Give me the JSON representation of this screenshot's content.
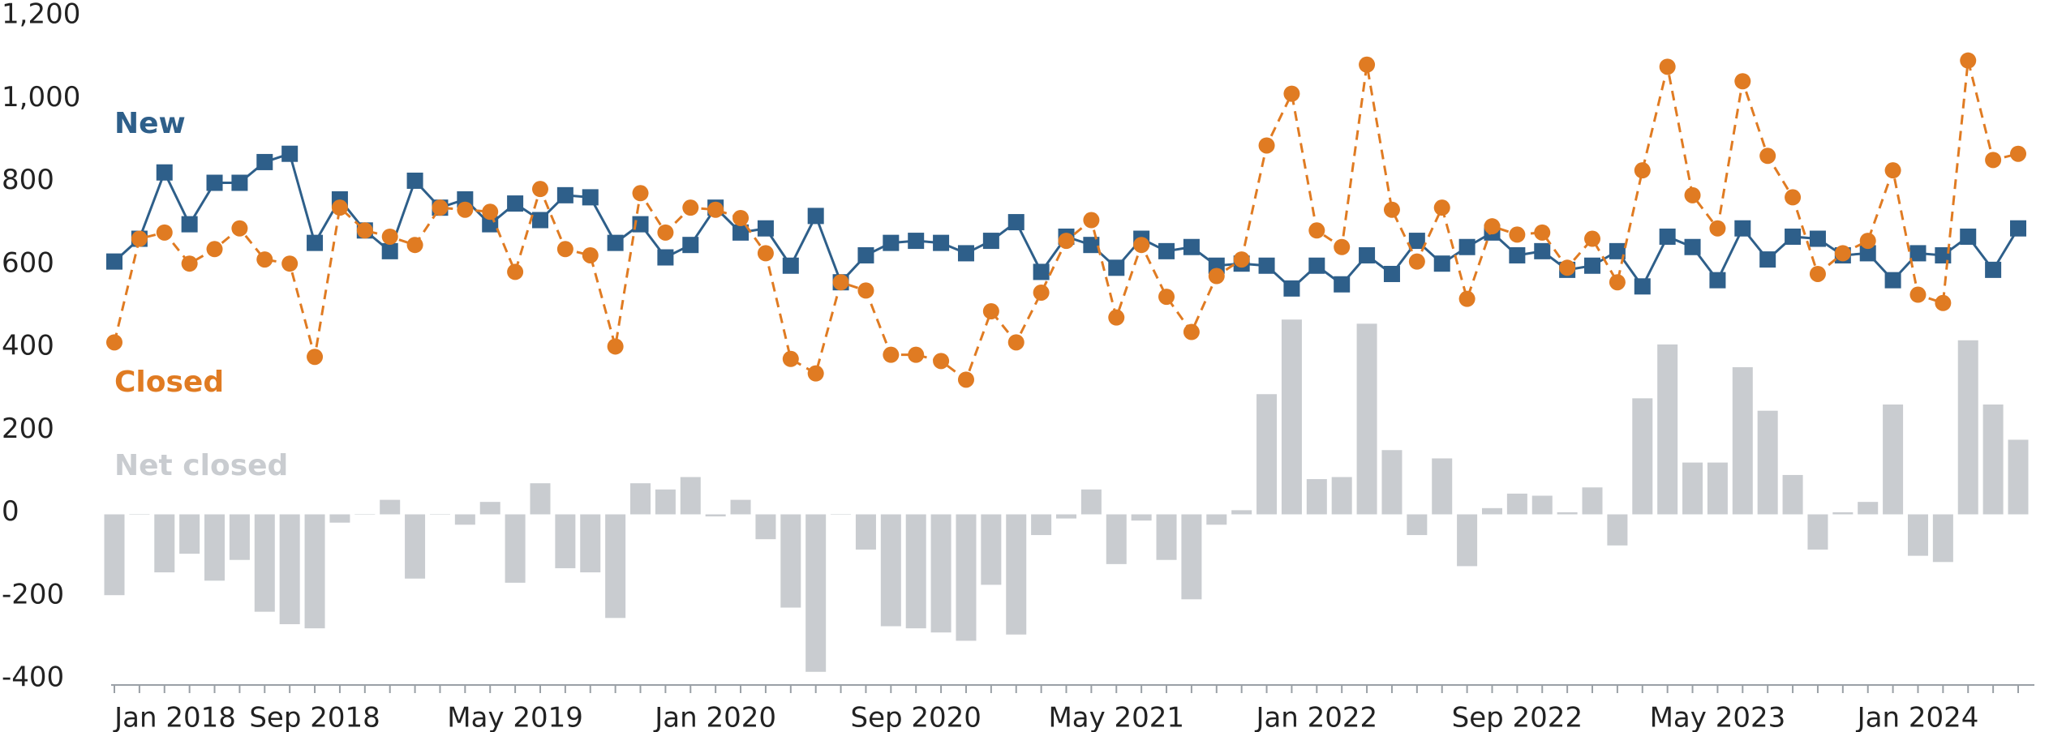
{
  "chart_data": {
    "type": "line",
    "x": [
      "2018-01",
      "2018-02",
      "2018-03",
      "2018-04",
      "2018-05",
      "2018-06",
      "2018-07",
      "2018-08",
      "2018-09",
      "2018-10",
      "2018-11",
      "2018-12",
      "2019-01",
      "2019-02",
      "2019-03",
      "2019-04",
      "2019-05",
      "2019-06",
      "2019-07",
      "2019-08",
      "2019-09",
      "2019-10",
      "2019-11",
      "2019-12",
      "2020-01",
      "2020-02",
      "2020-03",
      "2020-04",
      "2020-05",
      "2020-06",
      "2020-07",
      "2020-08",
      "2020-09",
      "2020-10",
      "2020-11",
      "2020-12",
      "2021-01",
      "2021-02",
      "2021-03",
      "2021-04",
      "2021-05",
      "2021-06",
      "2021-07",
      "2021-08",
      "2021-09",
      "2021-10",
      "2021-11",
      "2021-12",
      "2022-01",
      "2022-02",
      "2022-03",
      "2022-04",
      "2022-05",
      "2022-06",
      "2022-07",
      "2022-08",
      "2022-09",
      "2022-10",
      "2022-11",
      "2022-12",
      "2023-01",
      "2023-02",
      "2023-03",
      "2023-04",
      "2023-05",
      "2023-06",
      "2023-07",
      "2023-08",
      "2023-09",
      "2023-10",
      "2023-11",
      "2023-12",
      "2024-01",
      "2024-02",
      "2024-03",
      "2024-04",
      "2024-05"
    ],
    "series": [
      {
        "name": "New",
        "color": "#2e5f8a",
        "marker": "square",
        "dashed": false,
        "values": [
          610,
          665,
          825,
          700,
          800,
          800,
          850,
          870,
          655,
          760,
          685,
          635,
          805,
          740,
          760,
          700,
          750,
          710,
          770,
          765,
          655,
          700,
          620,
          650,
          740,
          680,
          690,
          600,
          720,
          560,
          625,
          655,
          660,
          655,
          630,
          660,
          705,
          585,
          670,
          650,
          595,
          665,
          635,
          645,
          600,
          605,
          600,
          545,
          600,
          555,
          625,
          580,
          660,
          605,
          645,
          680,
          625,
          635,
          590,
          600,
          635,
          550,
          670,
          645,
          565,
          690,
          615,
          670,
          665,
          625,
          630,
          565,
          630,
          625,
          670,
          590,
          690
        ]
      },
      {
        "name": "Closed",
        "color": "#e07b22",
        "marker": "circle",
        "dashed": true,
        "values": [
          415,
          665,
          680,
          605,
          640,
          690,
          615,
          605,
          380,
          740,
          685,
          670,
          650,
          740,
          735,
          730,
          585,
          785,
          640,
          625,
          405,
          775,
          680,
          740,
          735,
          715,
          630,
          375,
          340,
          560,
          540,
          385,
          385,
          370,
          325,
          490,
          415,
          535,
          660,
          710,
          475,
          650,
          525,
          440,
          575,
          615,
          890,
          1015,
          685,
          645,
          1085,
          735,
          610,
          740,
          520,
          695,
          675,
          680,
          595,
          665,
          560,
          830,
          1080,
          770,
          690,
          1045,
          865,
          765,
          580,
          630,
          660,
          830,
          530,
          510,
          1095,
          855,
          870
        ]
      },
      {
        "name": "Net closed",
        "color": "#c9ccd0",
        "marker": "bar",
        "values": [
          -195,
          0,
          -140,
          -95,
          -160,
          -110,
          -235,
          -265,
          -275,
          -20,
          0,
          35,
          -155,
          0,
          -25,
          30,
          -165,
          75,
          -130,
          -140,
          -250,
          75,
          60,
          90,
          -5,
          35,
          -60,
          -225,
          -380,
          0,
          -85,
          -270,
          -275,
          -285,
          -305,
          -170,
          -290,
          -50,
          -10,
          60,
          -120,
          -15,
          -110,
          -205,
          -25,
          10,
          290,
          470,
          85,
          90,
          460,
          155,
          -50,
          135,
          -125,
          15,
          50,
          45,
          5,
          65,
          -75,
          280,
          410,
          125,
          125,
          355,
          250,
          95,
          -85,
          5,
          30,
          265,
          -100,
          -115,
          420,
          265,
          180
        ]
      }
    ],
    "ylim": [
      -400,
      1200
    ],
    "yticks": [
      -400,
      -200,
      0,
      200,
      400,
      600,
      800,
      {
        "value": 1000,
        "label": "1,000"
      },
      {
        "value": 1200,
        "label": "1,200"
      }
    ],
    "xticks": [
      {
        "value": "2018-01",
        "label": "Jan 2018"
      },
      {
        "value": "2018-09",
        "label": "Sep 2018"
      },
      {
        "value": "2019-05",
        "label": "May 2019"
      },
      {
        "value": "2020-01",
        "label": "Jan 2020"
      },
      {
        "value": "2020-09",
        "label": "Sep 2020"
      },
      {
        "value": "2021-05",
        "label": "May 2021"
      },
      {
        "value": "2022-01",
        "label": "Jan 2022"
      },
      {
        "value": "2022-09",
        "label": "Sep 2022"
      },
      {
        "value": "2023-05",
        "label": "May 2023"
      },
      {
        "value": "2024-01",
        "label": "Jan 2024"
      }
    ],
    "grid": false
  }
}
